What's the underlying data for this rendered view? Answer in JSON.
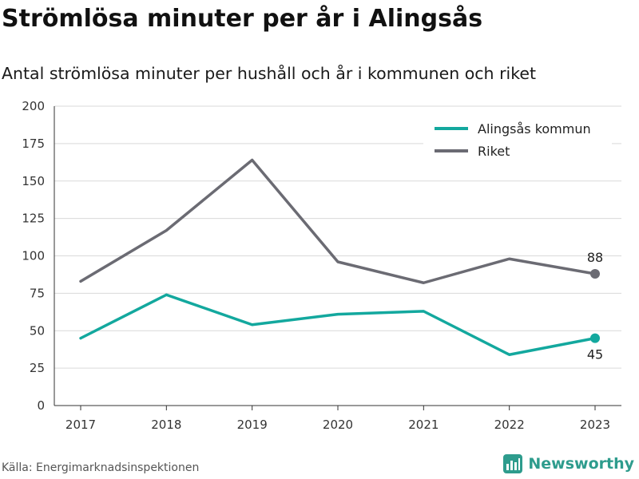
{
  "title": "Strömlösa minuter per år i Alingsås",
  "subtitle": "Antal strömlösa minuter per hushåll och år i kommunen och riket",
  "source": "Källa: Energimarknadsinspektionen",
  "brand": {
    "name": "Newsworthy",
    "icon": "bar-chart-logo-icon",
    "color": "#2e9c8d"
  },
  "chart_data": {
    "type": "line",
    "x": [
      2017,
      2018,
      2019,
      2020,
      2021,
      2022,
      2023
    ],
    "x_tick_labels": [
      "2017",
      "2018",
      "2019",
      "2020",
      "2021",
      "2022",
      "2023"
    ],
    "ylim": [
      0,
      200
    ],
    "y_ticks": [
      0,
      25,
      50,
      75,
      100,
      125,
      150,
      175,
      200
    ],
    "grid": true,
    "legend_position": "top-right",
    "series": [
      {
        "name": "Alingsås kommun",
        "color": "#13a89e",
        "values": [
          45,
          74,
          54,
          61,
          63,
          34,
          45
        ],
        "end_label": "45"
      },
      {
        "name": "Riket",
        "color": "#6b6b73",
        "values": [
          83,
          117,
          164,
          96,
          82,
          98,
          88
        ],
        "end_label": "88"
      }
    ]
  }
}
